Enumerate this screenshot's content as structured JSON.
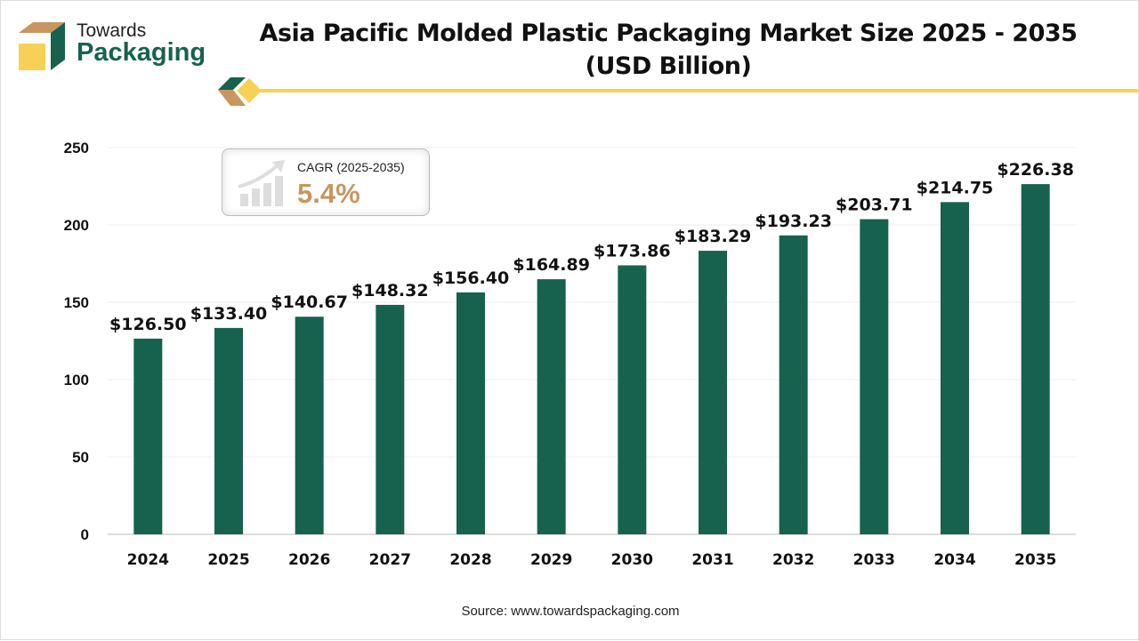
{
  "logo": {
    "line1": "Towards",
    "line2": "Packaging"
  },
  "colors": {
    "bar": "#17614f",
    "accent_yellow": "#f7d155",
    "accent_tan": "#c8965e"
  },
  "cagr": {
    "label": "CAGR (2025-2035)",
    "value": "5.4%",
    "icon": "growth-chart-icon"
  },
  "source": "Source: www.towardspackaging.com",
  "chart_data": {
    "type": "bar",
    "title": "Asia Pacific Molded Plastic Packaging Market Size 2025 - 2035",
    "subtitle": "(USD Billion)",
    "categories": [
      "2024",
      "2025",
      "2026",
      "2027",
      "2028",
      "2029",
      "2030",
      "2031",
      "2032",
      "2033",
      "2034",
      "2035"
    ],
    "values": [
      126.5,
      133.4,
      140.67,
      148.32,
      156.4,
      164.89,
      173.86,
      183.29,
      193.23,
      203.71,
      214.75,
      226.38
    ],
    "data_labels": [
      "$126.50",
      "$133.40",
      "$140.67",
      "$148.32",
      "$156.40",
      "$164.89",
      "$173.86",
      "$183.29",
      "$193.23",
      "$203.71",
      "$214.75",
      "$226.38"
    ],
    "yticks": [
      0,
      50,
      100,
      150,
      200,
      250
    ],
    "ylim": [
      0,
      250
    ],
    "grid": true,
    "xlabel": "",
    "ylabel": ""
  }
}
